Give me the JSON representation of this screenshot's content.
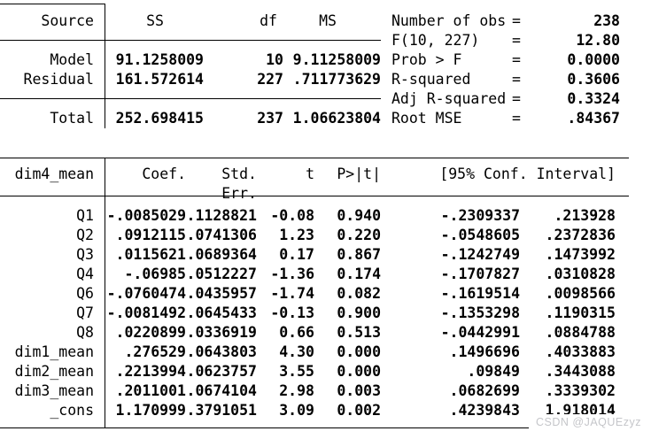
{
  "anova": {
    "col_headers": {
      "source": "Source",
      "ss": "SS",
      "df": "df",
      "ms": "MS"
    },
    "rows": [
      {
        "label": "Model",
        "ss": "91.1258009",
        "df": "10",
        "ms": "9.11258009"
      },
      {
        "label": "Residual",
        "ss": "161.572614",
        "df": "227",
        "ms": ".711773629"
      }
    ],
    "total_row": {
      "label": "Total",
      "ss": "252.698415",
      "df": "237",
      "ms": "1.06623804"
    }
  },
  "model_stats": [
    {
      "label": "Number of obs",
      "eq": "=",
      "value": "238"
    },
    {
      "label": "F(10, 227)",
      "eq": "=",
      "value": "12.80"
    },
    {
      "label": "Prob > F",
      "eq": "=",
      "value": "0.0000"
    },
    {
      "label": "R-squared",
      "eq": "=",
      "value": "0.3606"
    },
    {
      "label": "Adj R-squared",
      "eq": "=",
      "value": "0.3324"
    },
    {
      "label": "Root MSE",
      "eq": "=",
      "value": ".84367"
    }
  ],
  "coef_table": {
    "headers": {
      "depvar": "dim4_mean",
      "coef": "Coef.",
      "std_err": "Std. Err.",
      "t": "t",
      "p": "P>|t|",
      "ci": "[95% Conf. Interval]"
    },
    "rows": [
      {
        "label": "Q1",
        "coef": "-.0085029",
        "std_err": ".1128821",
        "t": "-0.08",
        "p": "0.940",
        "ci_low": "-.2309337",
        "ci_high": ".213928"
      },
      {
        "label": "Q2",
        "coef": ".0912115",
        "std_err": ".0741306",
        "t": "1.23",
        "p": "0.220",
        "ci_low": "-.0548605",
        "ci_high": ".2372836"
      },
      {
        "label": "Q3",
        "coef": ".0115621",
        "std_err": ".0689364",
        "t": "0.17",
        "p": "0.867",
        "ci_low": "-.1242749",
        "ci_high": ".1473992"
      },
      {
        "label": "Q4",
        "coef": "-.06985",
        "std_err": ".0512227",
        "t": "-1.36",
        "p": "0.174",
        "ci_low": "-.1707827",
        "ci_high": ".0310828"
      },
      {
        "label": "Q6",
        "coef": "-.0760474",
        "std_err": ".0435957",
        "t": "-1.74",
        "p": "0.082",
        "ci_low": "-.1619514",
        "ci_high": ".0098566"
      },
      {
        "label": "Q7",
        "coef": "-.0081492",
        "std_err": ".0645433",
        "t": "-0.13",
        "p": "0.900",
        "ci_low": "-.1353298",
        "ci_high": ".1190315"
      },
      {
        "label": "Q8",
        "coef": ".0220899",
        "std_err": ".0336919",
        "t": "0.66",
        "p": "0.513",
        "ci_low": "-.0442991",
        "ci_high": ".0884788"
      },
      {
        "label": "dim1_mean",
        "coef": ".276529",
        "std_err": ".0643803",
        "t": "4.30",
        "p": "0.000",
        "ci_low": ".1496696",
        "ci_high": ".4033883"
      },
      {
        "label": "dim2_mean",
        "coef": ".2213994",
        "std_err": ".0623757",
        "t": "3.55",
        "p": "0.000",
        "ci_low": ".09849",
        "ci_high": ".3443088"
      },
      {
        "label": "dim3_mean",
        "coef": ".2011001",
        "std_err": ".0674104",
        "t": "2.98",
        "p": "0.003",
        "ci_low": ".0682699",
        "ci_high": ".3339302"
      },
      {
        "label": "_cons",
        "coef": "1.170999",
        "std_err": ".3791051",
        "t": "3.09",
        "p": "0.002",
        "ci_low": ".4239843",
        "ci_high": "1.918014"
      }
    ]
  },
  "watermark": "CSDN @JAQUEzyz",
  "colors": {
    "text": "#000000",
    "rule": "#000000",
    "watermark": "#c5c6ca"
  }
}
